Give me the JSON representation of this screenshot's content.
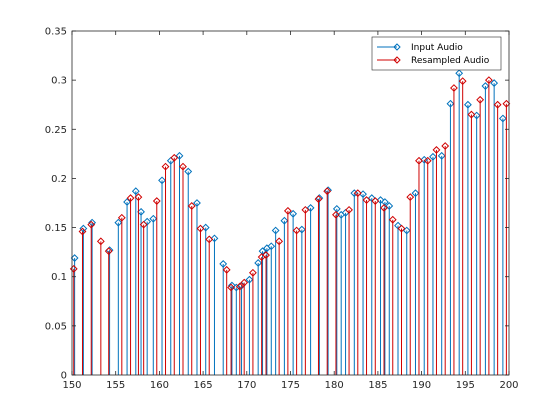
{
  "chart_data": {
    "type": "stem",
    "title": "",
    "xlabel": "",
    "ylabel": "",
    "xlim": [
      150,
      200
    ],
    "ylim": [
      0,
      0.35
    ],
    "xticks": [
      150,
      155,
      160,
      165,
      170,
      175,
      180,
      185,
      190,
      195,
      200
    ],
    "yticks": [
      0,
      0.05,
      0.1,
      0.15,
      0.2,
      0.25,
      0.3,
      0.35
    ],
    "xtick_labels": [
      "150",
      "155",
      "160",
      "165",
      "170",
      "175",
      "180",
      "185",
      "190",
      "195",
      "200"
    ],
    "ytick_labels": [
      "0",
      "0.05",
      "0.1",
      "0.15",
      "0.2",
      "0.25",
      "0.3",
      "0.35"
    ],
    "grid": false,
    "legend_position": "top-right",
    "series": [
      {
        "name": "Input Audio",
        "color": "#0072bd",
        "marker": "diamond",
        "x": [
          150.3,
          151.3,
          152.3,
          154.3,
          155.3,
          156.3,
          157.3,
          157.9,
          158.6,
          159.3,
          160.3,
          161.3,
          162.3,
          163.3,
          164.3,
          165.3,
          166.3,
          167.3,
          168.3,
          168.8,
          169.4,
          170.3,
          171.3,
          171.8,
          172.3,
          172.8,
          173.3,
          174.3,
          175.3,
          176.3,
          177.3,
          178.3,
          179.3,
          180.3,
          180.8,
          181.3,
          182.3,
          183.3,
          184.3,
          185.3,
          185.8,
          186.3,
          187.3,
          188.3,
          189.3,
          190.3,
          191.3,
          192.3,
          193.3,
          194.3,
          195.3,
          196.3,
          197.3,
          198.3,
          199.3
        ],
        "values": [
          0.119,
          0.149,
          0.155,
          0.127,
          0.155,
          0.176,
          0.187,
          0.166,
          0.156,
          0.159,
          0.198,
          0.218,
          0.223,
          0.207,
          0.175,
          0.15,
          0.139,
          0.113,
          0.091,
          0.089,
          0.091,
          0.097,
          0.114,
          0.126,
          0.129,
          0.131,
          0.147,
          0.157,
          0.164,
          0.148,
          0.17,
          0.18,
          0.188,
          0.169,
          0.163,
          0.165,
          0.185,
          0.184,
          0.18,
          0.178,
          0.176,
          0.172,
          0.152,
          0.147,
          0.185,
          0.219,
          0.222,
          0.223,
          0.276,
          0.307,
          0.275,
          0.264,
          0.294,
          0.297,
          0.261
        ]
      },
      {
        "name": "Resampled Audio",
        "color": "#d00000",
        "marker": "diamond",
        "x": [
          150.2,
          151.2,
          152.2,
          153.3,
          154.2,
          155.7,
          156.7,
          157.6,
          158.2,
          159.7,
          160.7,
          161.7,
          162.7,
          163.7,
          164.7,
          165.7,
          167.7,
          168.2,
          169.2,
          169.7,
          170.7,
          171.7,
          172.2,
          173.7,
          174.7,
          175.7,
          176.7,
          178.2,
          179.2,
          180.2,
          181.7,
          182.7,
          183.7,
          184.7,
          185.7,
          186.7,
          187.7,
          188.7,
          189.7,
          190.7,
          191.7,
          192.7,
          193.7,
          194.7,
          195.7,
          196.7,
          197.7,
          198.7,
          199.7
        ],
        "values": [
          0.108,
          0.146,
          0.153,
          0.136,
          0.126,
          0.16,
          0.18,
          0.181,
          0.153,
          0.177,
          0.212,
          0.221,
          0.212,
          0.172,
          0.149,
          0.138,
          0.107,
          0.089,
          0.09,
          0.094,
          0.104,
          0.12,
          0.122,
          0.136,
          0.167,
          0.147,
          0.168,
          0.179,
          0.187,
          0.163,
          0.168,
          0.185,
          0.178,
          0.177,
          0.17,
          0.158,
          0.149,
          0.181,
          0.218,
          0.218,
          0.229,
          0.233,
          0.292,
          0.299,
          0.265,
          0.28,
          0.3,
          0.275,
          0.276
        ]
      }
    ]
  }
}
